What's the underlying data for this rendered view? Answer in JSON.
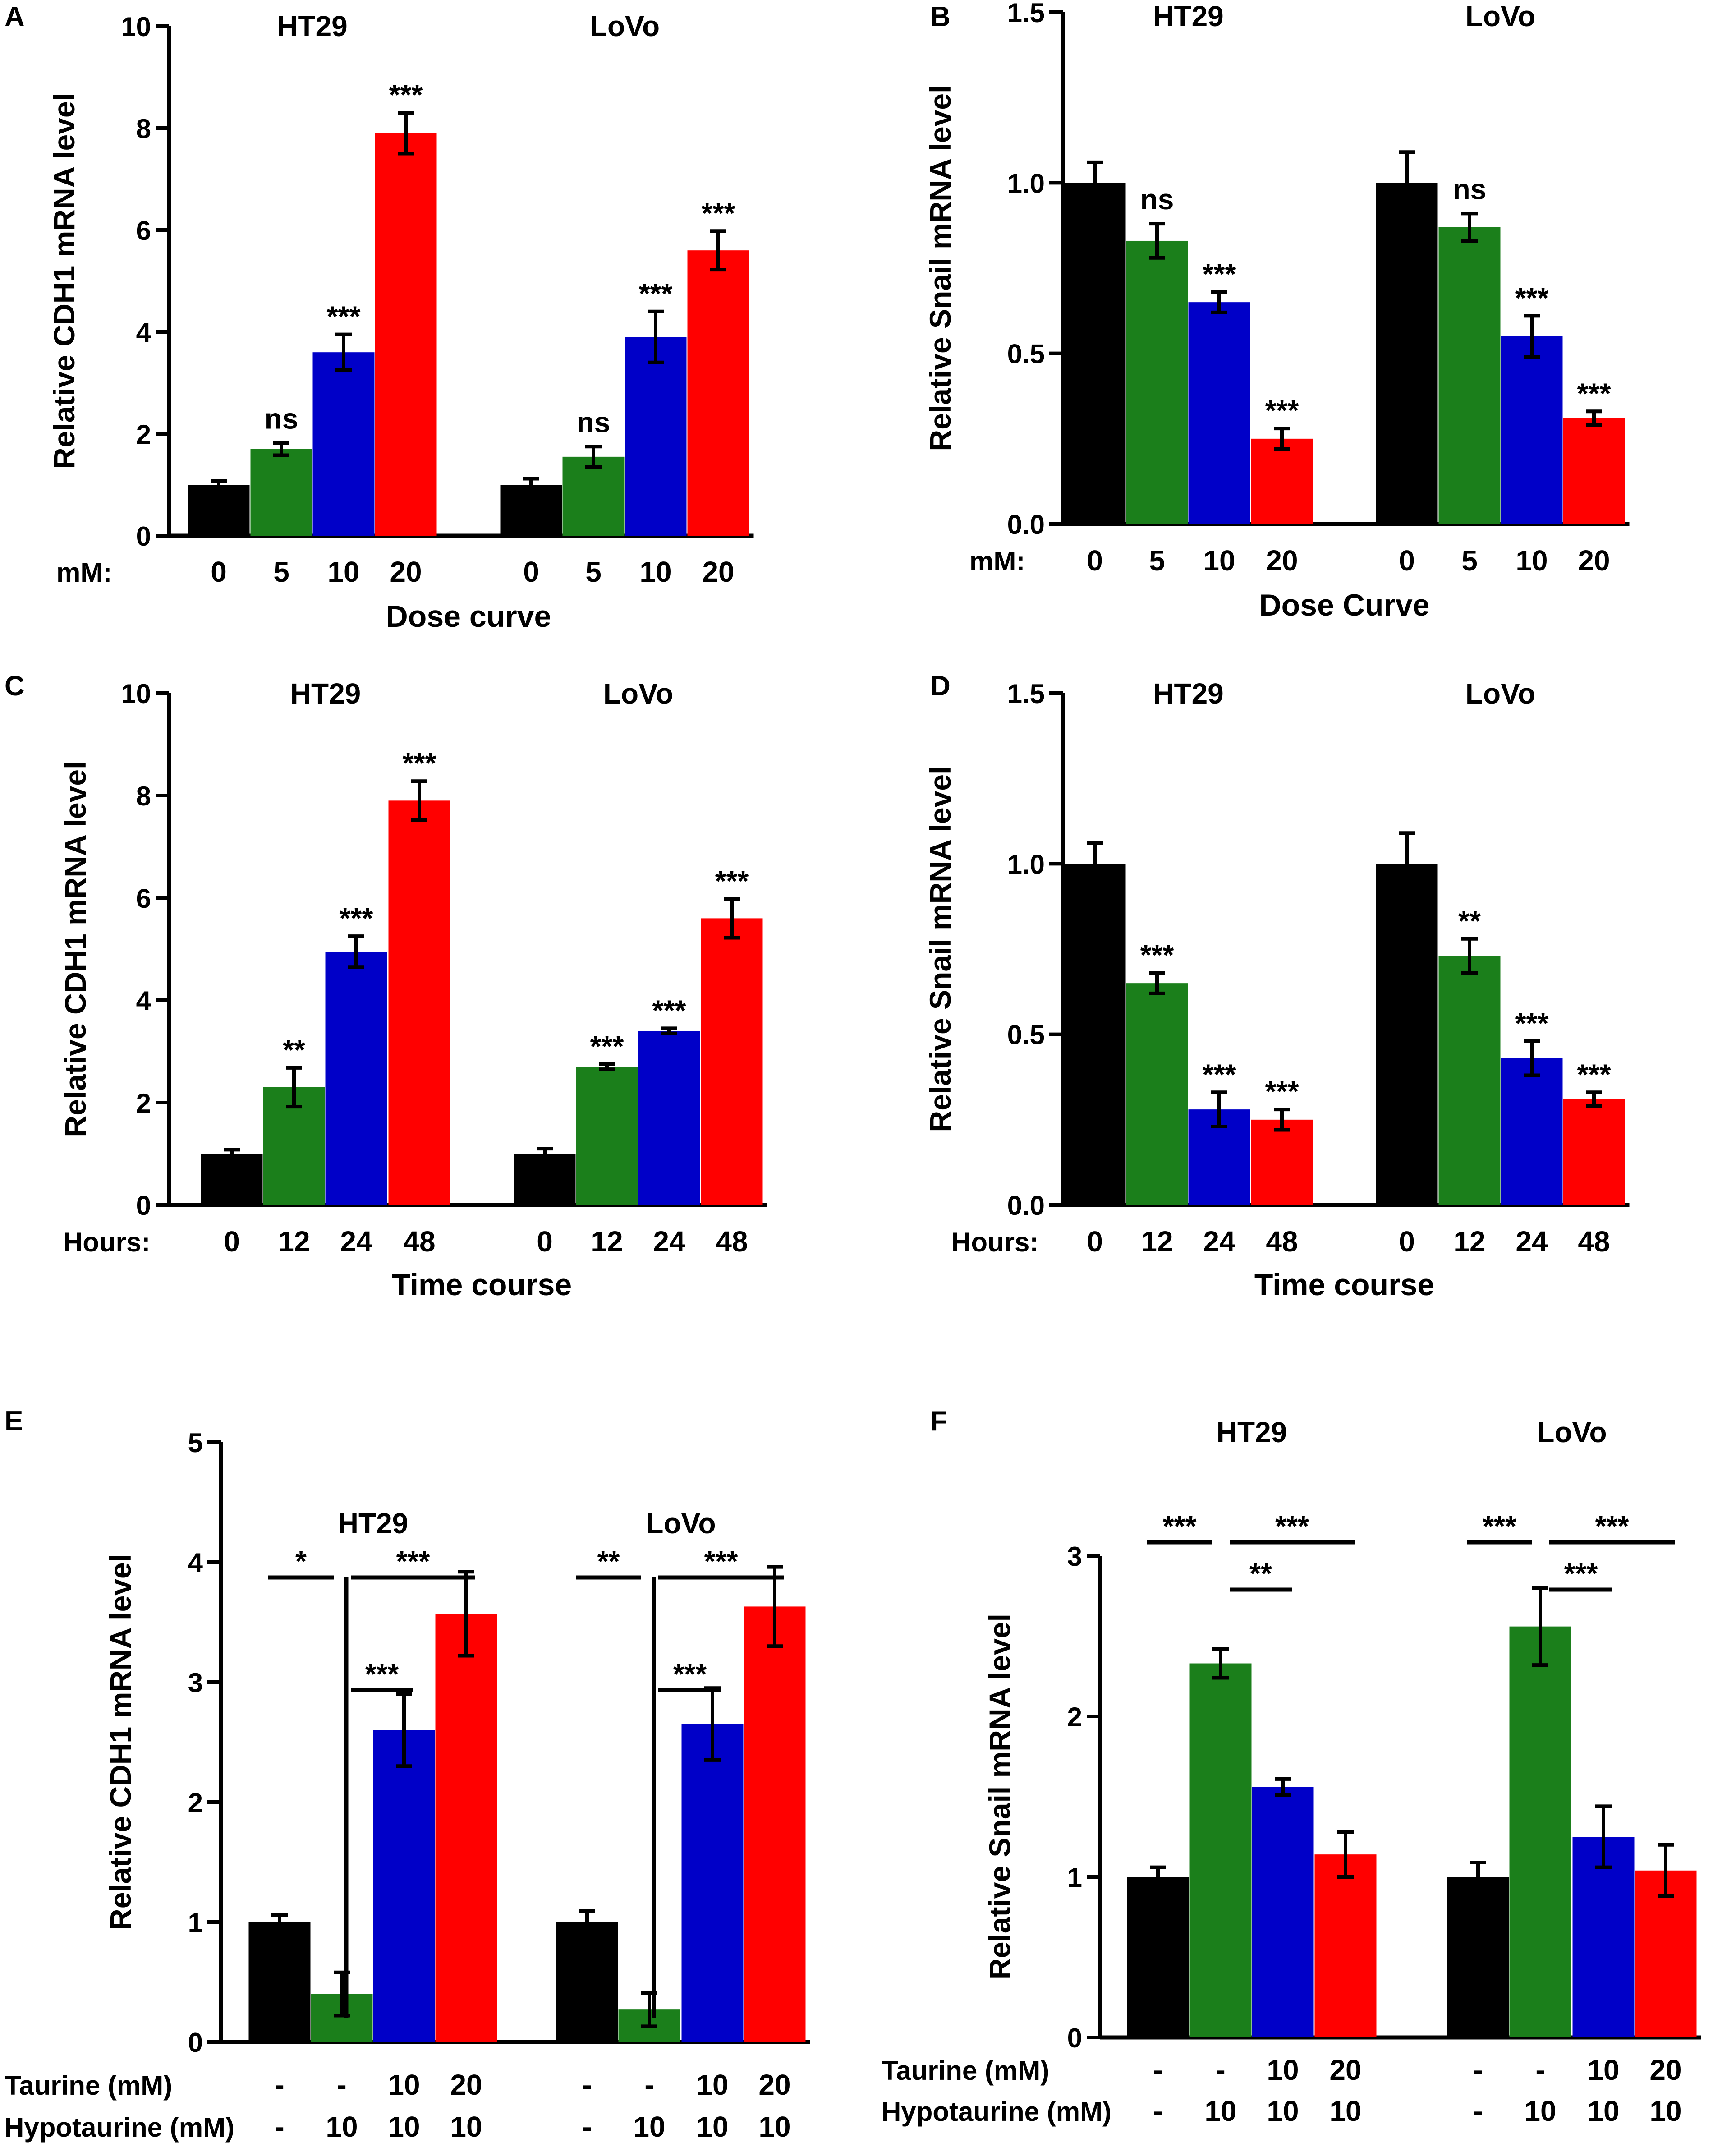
{
  "colors": {
    "black": "#000000",
    "green": "#1b7f1b",
    "blue": "#0000c8",
    "red": "#ff0000"
  },
  "chart_data": [
    {
      "panel": "A",
      "type": "bar",
      "ylabel": "Relative CDH1 mRNA level",
      "xlabel": "Dose curve",
      "ylim": [
        0,
        10
      ],
      "yticks": [
        "0",
        "2",
        "4",
        "6",
        "8",
        "10"
      ],
      "row_labels": [
        "mM:"
      ],
      "groups": [
        {
          "name": "HT29",
          "bars": [
            {
              "x": [
                "0"
              ],
              "value": 1.0,
              "error": 0.08,
              "color": "black",
              "sig": ""
            },
            {
              "x": [
                "5"
              ],
              "value": 1.7,
              "error": 0.12,
              "color": "green",
              "sig": "ns"
            },
            {
              "x": [
                "10"
              ],
              "value": 3.6,
              "error": 0.35,
              "color": "blue",
              "sig": "***"
            },
            {
              "x": [
                "20"
              ],
              "value": 7.9,
              "error": 0.4,
              "color": "red",
              "sig": "***"
            }
          ]
        },
        {
          "name": "LoVo",
          "bars": [
            {
              "x": [
                "0"
              ],
              "value": 1.0,
              "error": 0.12,
              "color": "black",
              "sig": ""
            },
            {
              "x": [
                "5"
              ],
              "value": 1.55,
              "error": 0.2,
              "color": "green",
              "sig": "ns"
            },
            {
              "x": [
                "10"
              ],
              "value": 3.9,
              "error": 0.5,
              "color": "blue",
              "sig": "***"
            },
            {
              "x": [
                "20"
              ],
              "value": 5.6,
              "error": 0.38,
              "color": "red",
              "sig": "***"
            }
          ]
        }
      ]
    },
    {
      "panel": "B",
      "type": "bar",
      "ylabel": "Relative Snail mRNA level",
      "xlabel": "Dose Curve",
      "ylim": [
        0,
        1.5
      ],
      "yticks": [
        "0.0",
        "0.5",
        "1.0",
        "1.5"
      ],
      "row_labels": [
        "mM:"
      ],
      "groups": [
        {
          "name": "HT29",
          "bars": [
            {
              "x": [
                "0"
              ],
              "value": 1.0,
              "error": 0.06,
              "color": "black",
              "sig": ""
            },
            {
              "x": [
                "5"
              ],
              "value": 0.83,
              "error": 0.05,
              "color": "green",
              "sig": "ns"
            },
            {
              "x": [
                "10"
              ],
              "value": 0.65,
              "error": 0.03,
              "color": "blue",
              "sig": "***"
            },
            {
              "x": [
                "20"
              ],
              "value": 0.25,
              "error": 0.03,
              "color": "red",
              "sig": "***"
            }
          ]
        },
        {
          "name": "LoVo",
          "bars": [
            {
              "x": [
                "0"
              ],
              "value": 1.0,
              "error": 0.09,
              "color": "black",
              "sig": ""
            },
            {
              "x": [
                "5"
              ],
              "value": 0.87,
              "error": 0.04,
              "color": "green",
              "sig": "ns"
            },
            {
              "x": [
                "10"
              ],
              "value": 0.55,
              "error": 0.06,
              "color": "blue",
              "sig": "***"
            },
            {
              "x": [
                "20"
              ],
              "value": 0.31,
              "error": 0.02,
              "color": "red",
              "sig": "***"
            }
          ]
        }
      ]
    },
    {
      "panel": "C",
      "type": "bar",
      "ylabel": "Relative CDH1 mRNA level",
      "xlabel": "Time course",
      "ylim": [
        0,
        10
      ],
      "yticks": [
        "0",
        "2",
        "4",
        "6",
        "8",
        "10"
      ],
      "row_labels": [
        "Hours:"
      ],
      "groups": [
        {
          "name": "HT29",
          "bars": [
            {
              "x": [
                "0"
              ],
              "value": 1.0,
              "error": 0.08,
              "color": "black",
              "sig": ""
            },
            {
              "x": [
                "12"
              ],
              "value": 2.3,
              "error": 0.38,
              "color": "green",
              "sig": "**"
            },
            {
              "x": [
                "24"
              ],
              "value": 4.95,
              "error": 0.3,
              "color": "blue",
              "sig": "***"
            },
            {
              "x": [
                "48"
              ],
              "value": 7.9,
              "error": 0.38,
              "color": "red",
              "sig": "***"
            }
          ]
        },
        {
          "name": "LoVo",
          "bars": [
            {
              "x": [
                "0"
              ],
              "value": 1.0,
              "error": 0.1,
              "color": "black",
              "sig": ""
            },
            {
              "x": [
                "12"
              ],
              "value": 2.7,
              "error": 0.05,
              "color": "green",
              "sig": "***"
            },
            {
              "x": [
                "24"
              ],
              "value": 3.4,
              "error": 0.05,
              "color": "blue",
              "sig": "***"
            },
            {
              "x": [
                "48"
              ],
              "value": 5.6,
              "error": 0.38,
              "color": "red",
              "sig": "***"
            }
          ]
        }
      ]
    },
    {
      "panel": "D",
      "type": "bar",
      "ylabel": "Relative Snail mRNA level",
      "xlabel": "Time course",
      "ylim": [
        0,
        1.5
      ],
      "yticks": [
        "0.0",
        "0.5",
        "1.0",
        "1.5"
      ],
      "row_labels": [
        "Hours:"
      ],
      "groups": [
        {
          "name": "HT29",
          "bars": [
            {
              "x": [
                "0"
              ],
              "value": 1.0,
              "error": 0.06,
              "color": "black",
              "sig": ""
            },
            {
              "x": [
                "12"
              ],
              "value": 0.65,
              "error": 0.03,
              "color": "green",
              "sig": "***"
            },
            {
              "x": [
                "24"
              ],
              "value": 0.28,
              "error": 0.05,
              "color": "blue",
              "sig": "***"
            },
            {
              "x": [
                "48"
              ],
              "value": 0.25,
              "error": 0.03,
              "color": "red",
              "sig": "***"
            }
          ]
        },
        {
          "name": "LoVo",
          "bars": [
            {
              "x": [
                "0"
              ],
              "value": 1.0,
              "error": 0.09,
              "color": "black",
              "sig": ""
            },
            {
              "x": [
                "12"
              ],
              "value": 0.73,
              "error": 0.05,
              "color": "green",
              "sig": "**"
            },
            {
              "x": [
                "24"
              ],
              "value": 0.43,
              "error": 0.05,
              "color": "blue",
              "sig": "***"
            },
            {
              "x": [
                "48"
              ],
              "value": 0.31,
              "error": 0.02,
              "color": "red",
              "sig": "***"
            }
          ]
        }
      ]
    },
    {
      "panel": "E",
      "type": "bar",
      "ylabel": "Relative CDH1 mRNA level",
      "xlabel": "",
      "ylim": [
        0,
        5
      ],
      "yticks": [
        "0",
        "1",
        "2",
        "3",
        "4",
        "5"
      ],
      "row_labels": [
        "Taurine (mM)",
        "Hypotaurine (mM)"
      ],
      "groups": [
        {
          "name": "HT29",
          "bars": [
            {
              "x": [
                "-",
                "-"
              ],
              "value": 1.0,
              "error": 0.06,
              "color": "black",
              "sig": ""
            },
            {
              "x": [
                "-",
                "10"
              ],
              "value": 0.4,
              "error": 0.18,
              "color": "green",
              "sig": ""
            },
            {
              "x": [
                "10",
                "10"
              ],
              "value": 2.6,
              "error": 0.3,
              "color": "blue",
              "sig": ""
            },
            {
              "x": [
                "20",
                "10"
              ],
              "value": 3.57,
              "error": 0.35,
              "color": "red",
              "sig": ""
            }
          ],
          "brackets": [
            {
              "from": 0,
              "to": 1,
              "label": "*",
              "level": 0,
              "drop": true
            },
            {
              "from": 1,
              "to": 3,
              "label": "***",
              "level": 0,
              "drop": false
            },
            {
              "from": 1,
              "to": 2,
              "label": "***",
              "level": 1,
              "drop": false
            }
          ]
        },
        {
          "name": "LoVo",
          "bars": [
            {
              "x": [
                "-",
                "-"
              ],
              "value": 1.0,
              "error": 0.09,
              "color": "black",
              "sig": ""
            },
            {
              "x": [
                "-",
                "10"
              ],
              "value": 0.27,
              "error": 0.14,
              "color": "green",
              "sig": ""
            },
            {
              "x": [
                "10",
                "10"
              ],
              "value": 2.65,
              "error": 0.3,
              "color": "blue",
              "sig": ""
            },
            {
              "x": [
                "20",
                "10"
              ],
              "value": 3.63,
              "error": 0.33,
              "color": "red",
              "sig": ""
            }
          ],
          "brackets": [
            {
              "from": 0,
              "to": 1,
              "label": "**",
              "level": 0,
              "drop": true
            },
            {
              "from": 1,
              "to": 3,
              "label": "***",
              "level": 0,
              "drop": false
            },
            {
              "from": 1,
              "to": 2,
              "label": "***",
              "level": 1,
              "drop": false
            }
          ]
        }
      ]
    },
    {
      "panel": "F",
      "type": "bar",
      "ylabel": "Relative Snail mRNA level",
      "xlabel": "",
      "ylim": [
        0,
        3
      ],
      "yticks": [
        "0",
        "1",
        "2",
        "3"
      ],
      "row_labels": [
        "Taurine (mM)",
        "Hypotaurine (mM)"
      ],
      "groups": [
        {
          "name": "HT29",
          "bars": [
            {
              "x": [
                "-",
                "-"
              ],
              "value": 1.0,
              "error": 0.06,
              "color": "black",
              "sig": ""
            },
            {
              "x": [
                "-",
                "10"
              ],
              "value": 2.33,
              "error": 0.09,
              "color": "green",
              "sig": ""
            },
            {
              "x": [
                "10",
                "10"
              ],
              "value": 1.56,
              "error": 0.05,
              "color": "blue",
              "sig": ""
            },
            {
              "x": [
                "20",
                "10"
              ],
              "value": 1.14,
              "error": 0.14,
              "color": "red",
              "sig": ""
            }
          ],
          "brackets": [
            {
              "from": 0,
              "to": 1,
              "label": "***",
              "level": 0,
              "drop": false
            },
            {
              "from": 1,
              "to": 3,
              "label": "***",
              "level": 0,
              "drop": false
            },
            {
              "from": 1,
              "to": 2,
              "label": "**",
              "level": 1,
              "drop": false
            }
          ]
        },
        {
          "name": "LoVo",
          "bars": [
            {
              "x": [
                "-",
                "-"
              ],
              "value": 1.0,
              "error": 0.09,
              "color": "black",
              "sig": ""
            },
            {
              "x": [
                "-",
                "10"
              ],
              "value": 2.56,
              "error": 0.24,
              "color": "green",
              "sig": ""
            },
            {
              "x": [
                "10",
                "10"
              ],
              "value": 1.25,
              "error": 0.19,
              "color": "blue",
              "sig": ""
            },
            {
              "x": [
                "20",
                "10"
              ],
              "value": 1.04,
              "error": 0.16,
              "color": "red",
              "sig": ""
            }
          ],
          "brackets": [
            {
              "from": 0,
              "to": 1,
              "label": "***",
              "level": 0,
              "drop": false
            },
            {
              "from": 1,
              "to": 3,
              "label": "***",
              "level": 0,
              "drop": false
            },
            {
              "from": 1,
              "to": 2,
              "label": "***",
              "level": 1,
              "drop": false
            }
          ]
        }
      ]
    }
  ]
}
